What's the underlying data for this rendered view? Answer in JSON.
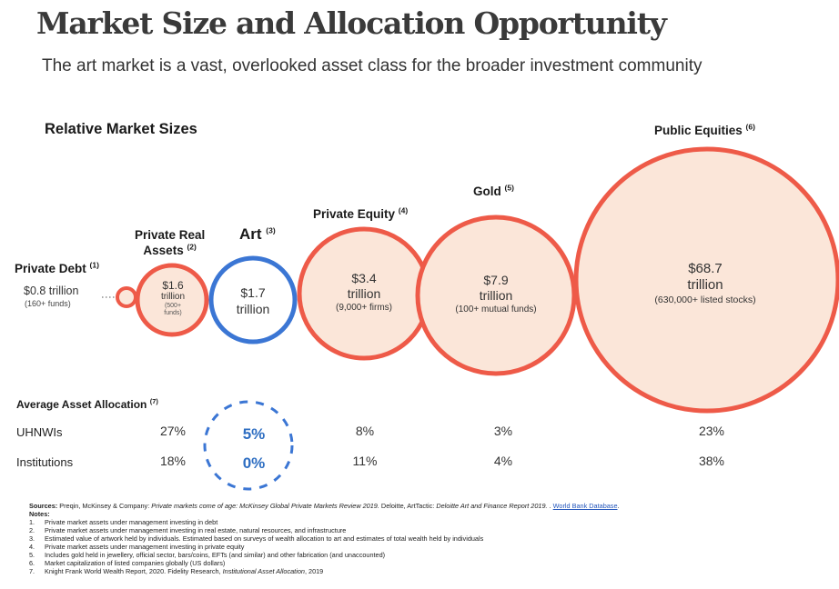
{
  "title": "Market Size and Allocation Opportunity",
  "subtitle": "The art market is a vast, overlooked asset class for the broader investment community",
  "market_sizes_heading": "Relative Market Sizes",
  "allocation_heading": "Average Asset Allocation",
  "allocation_note": "(7)",
  "colors": {
    "market_fill": "#fbe6d9",
    "market_stroke": "#ee5a48",
    "art_stroke": "#3b76d4",
    "art_dash": "#3b76d4"
  },
  "chart_data": {
    "type": "bubble",
    "title": "Relative Market Sizes",
    "unit": "trillion USD",
    "markets": [
      {
        "name": "Private Debt",
        "note": "(1)",
        "value": 0.8,
        "value_label": "$0.8 trillion",
        "detail": "(160+ funds)"
      },
      {
        "name": "Private Real Assets",
        "name_line1": "Private Real",
        "name_line2": "Assets",
        "note": "(2)",
        "value": 1.6,
        "value_label": "$1.6",
        "value_unit": "trillion",
        "detail_line1": "(500+",
        "detail_line2": "funds)"
      },
      {
        "name": "Art",
        "note": "(3)",
        "value": 1.7,
        "value_label": "$1.7",
        "value_unit": "trillion",
        "highlight": true
      },
      {
        "name": "Private Equity",
        "note": "(4)",
        "value": 3.4,
        "value_label": "$3.4",
        "value_unit": "trillion",
        "detail": "(9,000+ firms)"
      },
      {
        "name": "Gold",
        "note": "(5)",
        "value": 7.9,
        "value_label": "$7.9",
        "value_unit": "trillion",
        "detail": "(100+ mutual funds)"
      },
      {
        "name": "Public Equities",
        "note": "(6)",
        "value": 68.7,
        "value_label": "$68.7",
        "value_unit": "trillion",
        "detail": "(630,000+ listed stocks)"
      }
    ],
    "allocation": {
      "rows": [
        {
          "label": "UHNWIs",
          "values": [
            "27%",
            "5%",
            "8%",
            "3%",
            "23%"
          ]
        },
        {
          "label": "Institutions",
          "values": [
            "18%",
            "0%",
            "11%",
            "4%",
            "38%"
          ]
        }
      ],
      "columns": [
        "Private Real Assets",
        "Art",
        "Private Equity",
        "Gold",
        "Public Equities"
      ]
    }
  },
  "sources": {
    "label": "Sources:",
    "text_a": " Preqin, McKinsey & Company: ",
    "italic_a": "Private markets come of age: McKinsey Global Private Markets Review 2019.",
    "text_b": " Deloitte, ArtTactic: ",
    "italic_b": "Deloitte Art and Finance Report 2019.",
    "text_c": " . ",
    "link": "World Bank Database",
    "text_d": "."
  },
  "notes_label": "Notes:",
  "notes": [
    {
      "num": "1.",
      "text": "Private market assets under management investing in debt"
    },
    {
      "num": "2.",
      "text": "Private market assets under management investing in real estate, natural resources, and infrastructure"
    },
    {
      "num": "3.",
      "text": "Estimated value of artwork held by individuals. Estimated based on surveys of wealth allocation to art and estimates of total wealth held by individuals"
    },
    {
      "num": "4.",
      "text": "Private market assets under management investing in private equity"
    },
    {
      "num": "5.",
      "text": "Includes gold held in jewellery, official sector, bars/coins, EFTs (and similar) and other fabrication (and unaccounted)"
    },
    {
      "num": "6.",
      "text": "Market capitalization of listed companies globally (US dollars)"
    },
    {
      "num": "7.",
      "text": "Knight Frank World Wealth Report, 2020. Fidelity Research, ",
      "italic": "Institutional Asset Allocation",
      "text2": ", 2019"
    }
  ]
}
